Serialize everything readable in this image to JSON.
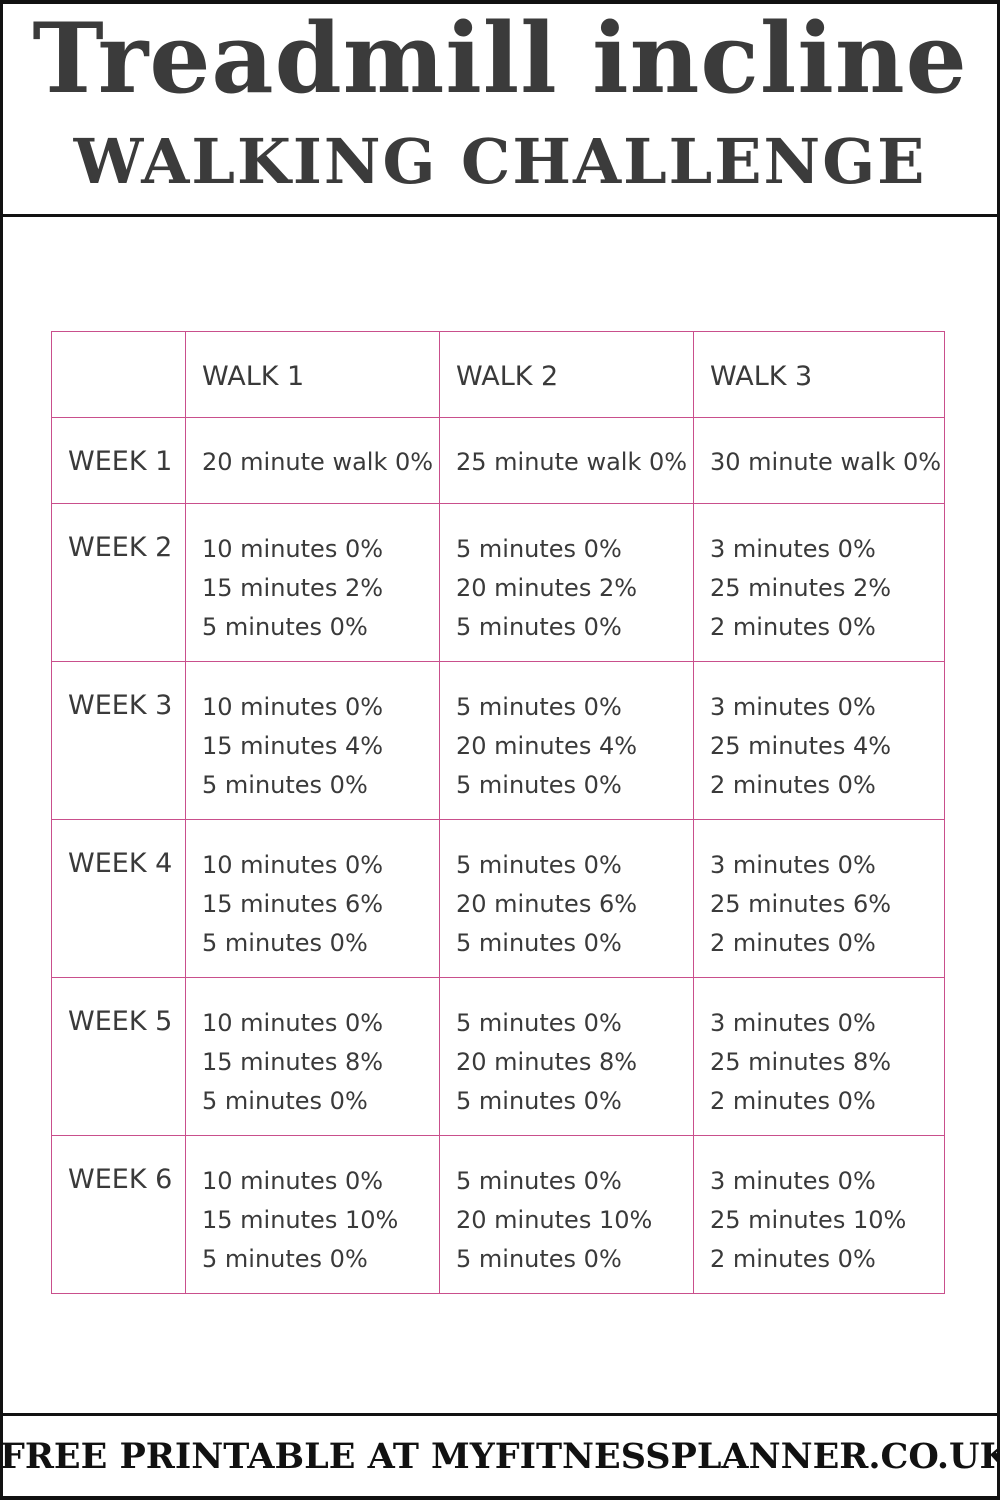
{
  "header": {
    "title_line1": "Treadmill incline",
    "title_line2": "WALKING CHALLENGE"
  },
  "table": {
    "columns": [
      "",
      "WALK 1",
      "WALK 2",
      "WALK 3"
    ],
    "rows": [
      {
        "week": "WEEK 1",
        "walks": [
          [
            "20 minute walk 0%"
          ],
          [
            "25 minute walk 0%"
          ],
          [
            "30 minute walk 0%"
          ]
        ]
      },
      {
        "week": "WEEK 2",
        "walks": [
          [
            "10 minutes 0%",
            "15 minutes 2%",
            "5 minutes 0%"
          ],
          [
            "5 minutes 0%",
            "20 minutes 2%",
            "5 minutes 0%"
          ],
          [
            "3 minutes 0%",
            "25 minutes 2%",
            "2 minutes 0%"
          ]
        ]
      },
      {
        "week": "WEEK 3",
        "walks": [
          [
            "10 minutes 0%",
            "15 minutes 4%",
            "5 minutes 0%"
          ],
          [
            "5 minutes 0%",
            "20 minutes 4%",
            "5 minutes 0%"
          ],
          [
            "3 minutes 0%",
            "25 minutes 4%",
            "2 minutes 0%"
          ]
        ]
      },
      {
        "week": "WEEK 4",
        "walks": [
          [
            "10 minutes 0%",
            "15 minutes 6%",
            "5 minutes 0%"
          ],
          [
            "5 minutes 0%",
            "20 minutes 6%",
            "5 minutes 0%"
          ],
          [
            "3 minutes 0%",
            "25 minutes 6%",
            "2 minutes 0%"
          ]
        ]
      },
      {
        "week": "WEEK 5",
        "walks": [
          [
            "10 minutes 0%",
            "15 minutes 8%",
            "5 minutes 0%"
          ],
          [
            "5 minutes 0%",
            "20 minutes 8%",
            "5 minutes 0%"
          ],
          [
            "3 minutes 0%",
            "25 minutes 8%",
            "2 minutes 0%"
          ]
        ]
      },
      {
        "week": "WEEK 6",
        "walks": [
          [
            "10 minutes 0%",
            "15 minutes 10%",
            "5 minutes 0%"
          ],
          [
            "5 minutes 0%",
            "20 minutes 10%",
            "5 minutes 0%"
          ],
          [
            "3 minutes 0%",
            "25 minutes 10%",
            "2 minutes 0%"
          ]
        ]
      }
    ]
  },
  "footer": {
    "text": "FREE PRINTABLE AT MYFITNESSPLANNER.CO.UK"
  },
  "colors": {
    "grid_line": "#c94f8c",
    "text": "#3a3a3a",
    "title": "#3b3b3b",
    "rule": "#111111"
  }
}
